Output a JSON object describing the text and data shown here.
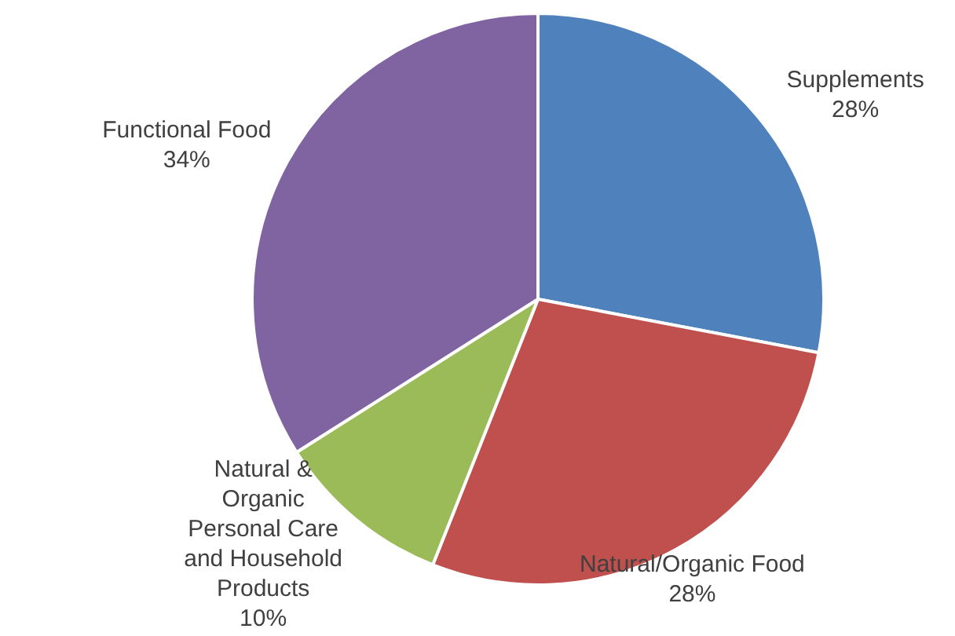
{
  "chart_data": {
    "type": "pie",
    "categories": [
      "Supplements",
      "Natural/Organic Food",
      "Natural &\nOrganic\nPersonal Care\nand Household\nProducts",
      "Functional Food"
    ],
    "values": [
      28,
      28,
      10,
      34
    ],
    "colors": [
      "#4f81bd",
      "#c0504d",
      "#9bbb59",
      "#8064a2"
    ],
    "value_labels": [
      "28%",
      "28%",
      "10%",
      "34%"
    ]
  }
}
